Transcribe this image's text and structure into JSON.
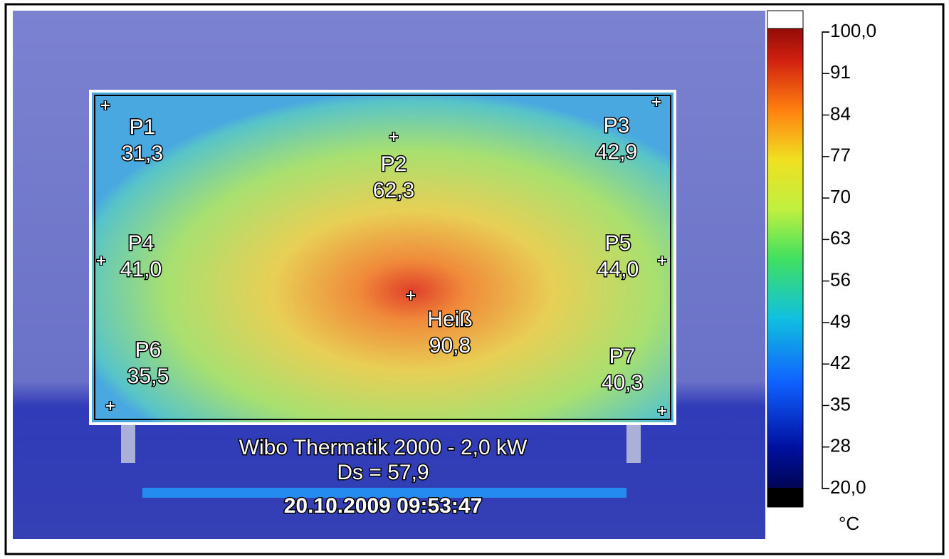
{
  "points": [
    {
      "label": "P1",
      "value": "31,3"
    },
    {
      "label": "P2",
      "value": "62,3"
    },
    {
      "label": "P3",
      "value": "42,9"
    },
    {
      "label": "P4",
      "value": "41,0"
    },
    {
      "label": "P5",
      "value": "44,0"
    },
    {
      "label": "Heiß",
      "value": "90,8"
    },
    {
      "label": "P6",
      "value": "35,5"
    },
    {
      "label": "P7",
      "value": "40,3"
    }
  ],
  "caption": {
    "device": "Wibo Thermatik 2000 - 2,0 kW",
    "ds": "Ds = 57,9",
    "timestamp": "20.10.2009 09:53:47"
  },
  "colorbar": {
    "ticks": [
      "100,0",
      "91",
      "84",
      "77",
      "70",
      "63",
      "56",
      "49",
      "42",
      "35",
      "28",
      "20,0"
    ],
    "unit": "°C"
  }
}
